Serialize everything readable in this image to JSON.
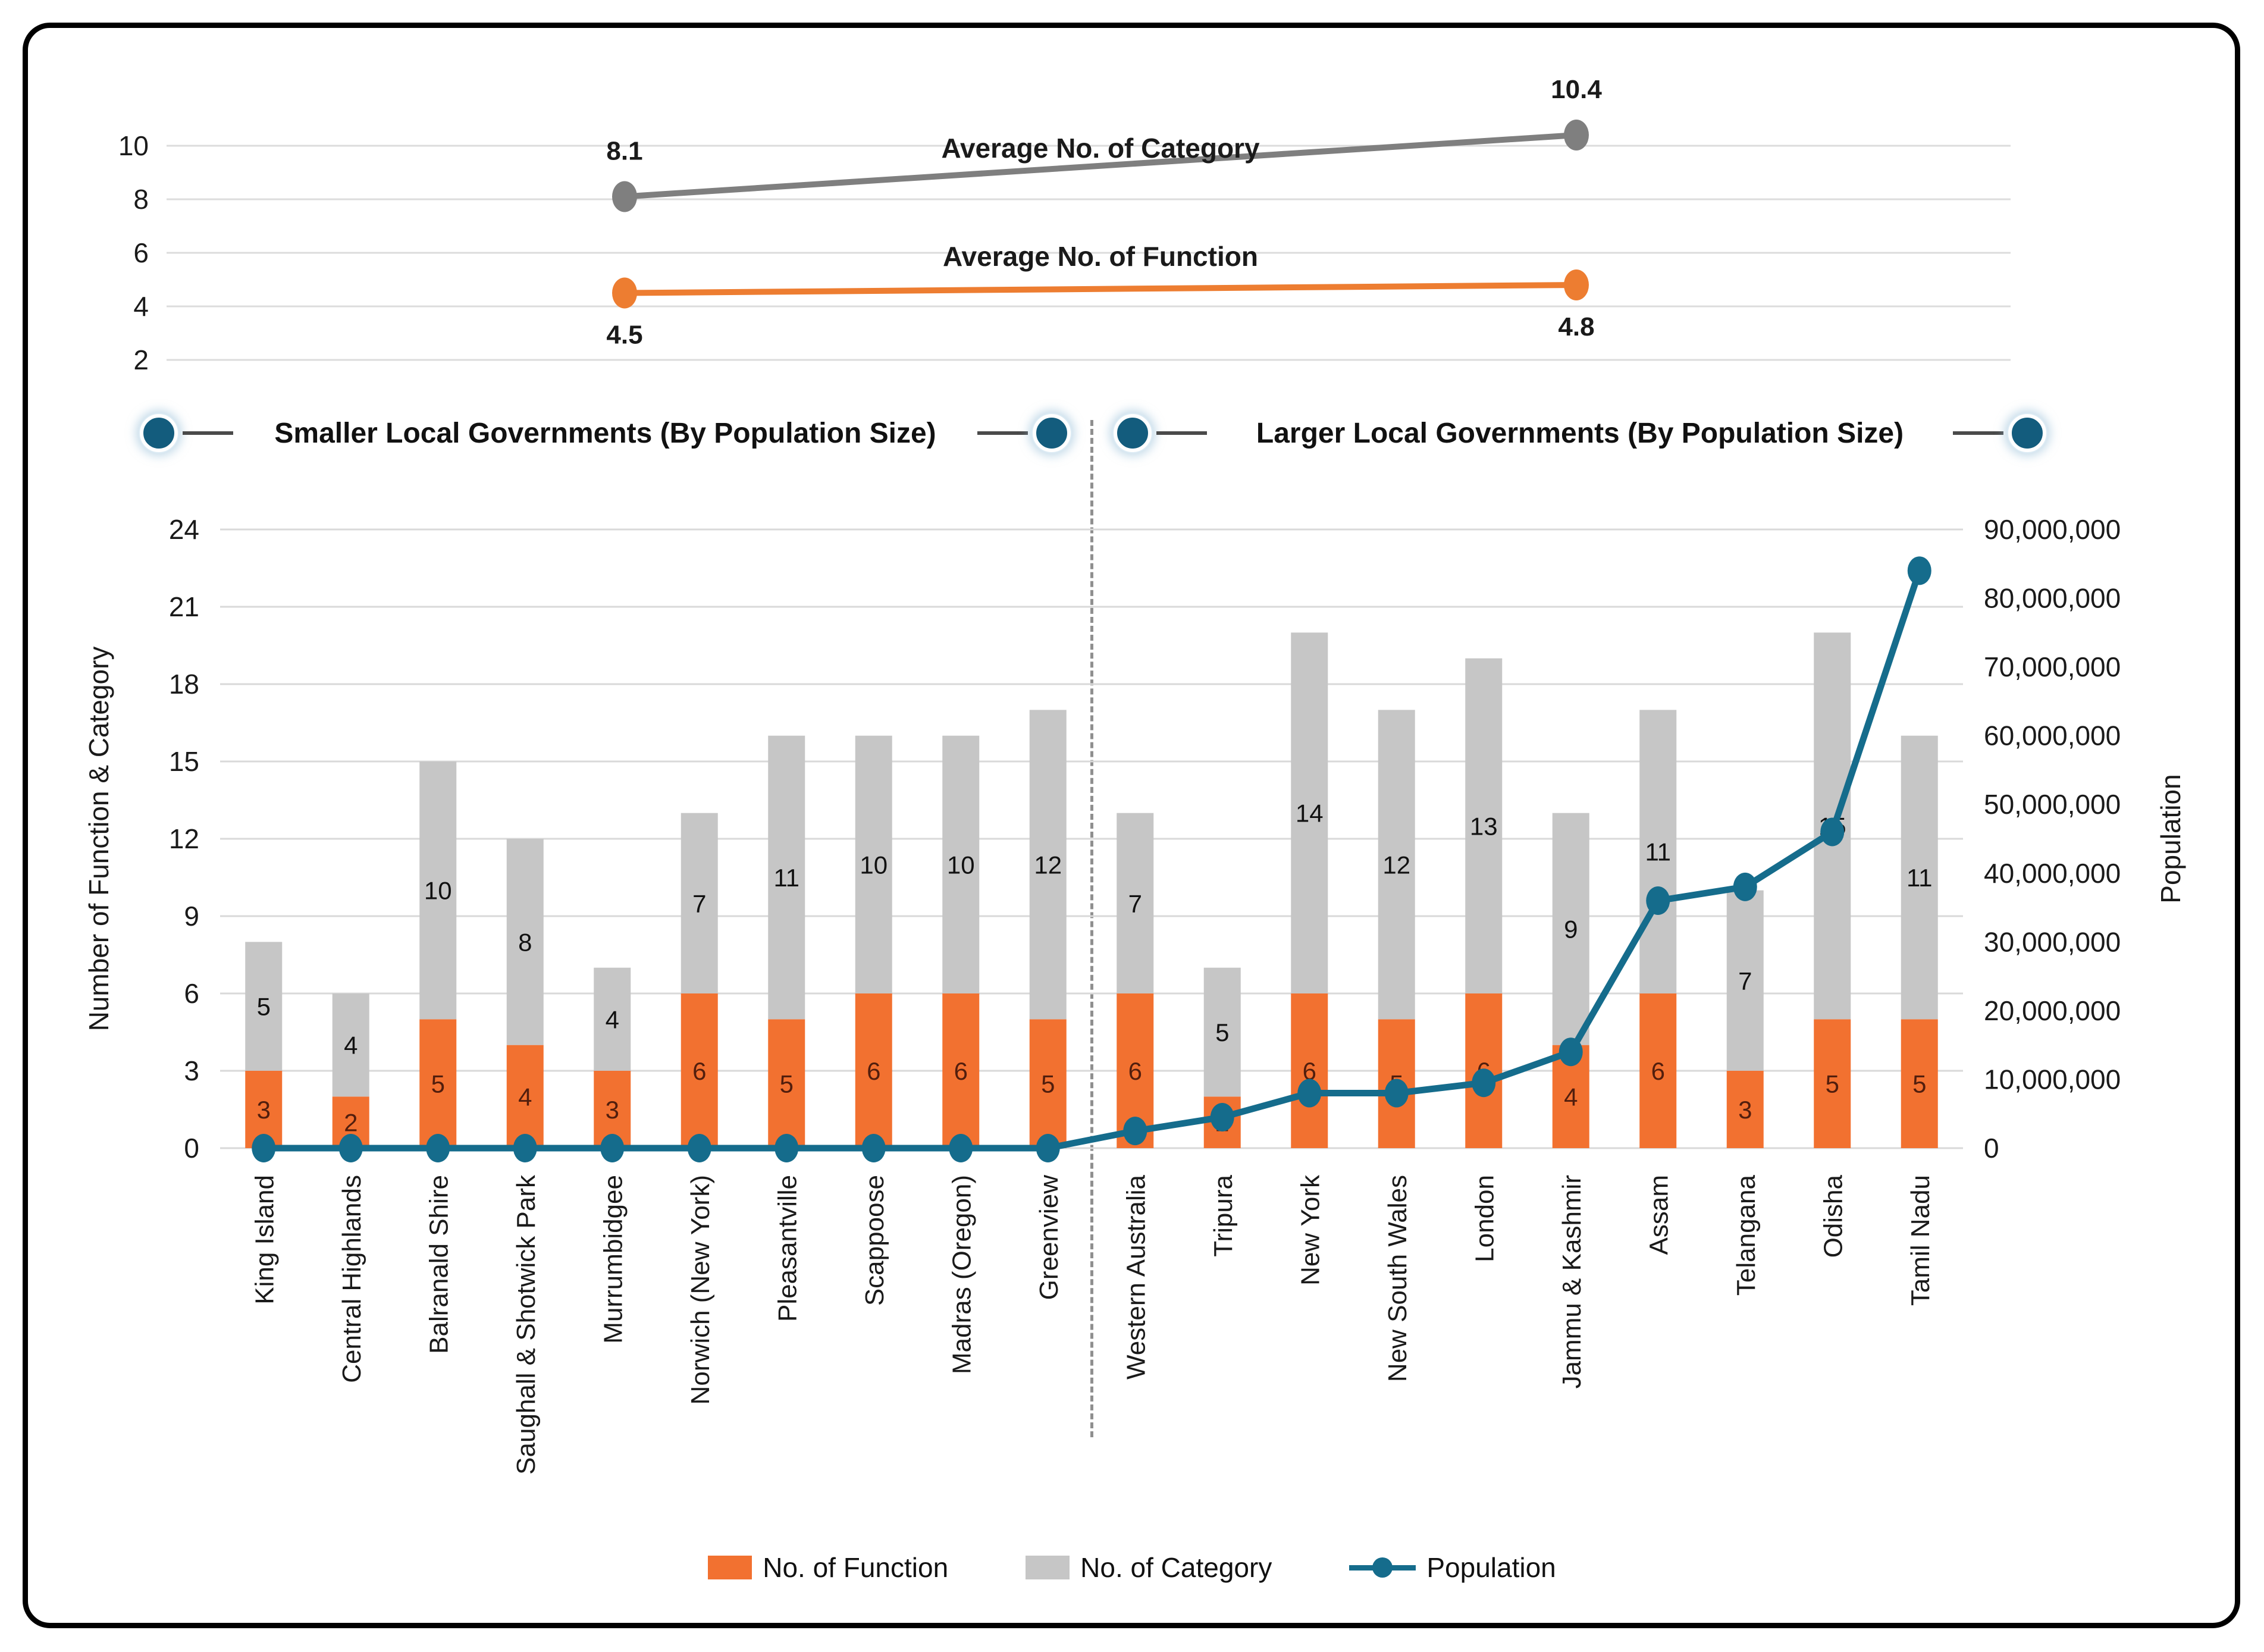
{
  "figure": {
    "section_headers": {
      "left": "Smaller Local Governments (By Population Size)",
      "right": "Larger Local Governments (By Population Size)"
    },
    "legend": [
      {
        "label": "No. of Function",
        "color": "#F27130",
        "marker": "square"
      },
      {
        "label": "No. of Category",
        "color": "#C6C6C6",
        "marker": "square"
      },
      {
        "label": "Population",
        "color": "#156C8C",
        "marker": "line-dot"
      }
    ]
  },
  "chart_data": [
    {
      "id": "averages_line_chart",
      "type": "line",
      "x": [
        "Smaller Local Governments group",
        "Larger Local Governments group"
      ],
      "series": [
        {
          "name": "Average No. of Category",
          "color": "#7F7F7F",
          "values": [
            8.1,
            10.4
          ]
        },
        {
          "name": "Average No. of Function",
          "color": "#ED7D31",
          "values": [
            4.5,
            4.8
          ]
        }
      ],
      "yticks": [
        2,
        4,
        6,
        8,
        10
      ],
      "ylim": [
        1.5,
        11.5
      ],
      "grid": true,
      "data_labels": true,
      "legend_position": "inline"
    },
    {
      "id": "functions_categories_population_chart",
      "type": "bar+line",
      "categories": [
        "King Island",
        "Central Highlands",
        "Balranald Shire",
        "Saughall & Shotwick Park",
        "Murrumbidgee",
        "Norwich (New York)",
        "Pleasantville",
        "Scappoose",
        "Madras (Oregon)",
        "Greenview",
        "Western Australia",
        "Tripura",
        "New York",
        "New South Wales",
        "London",
        "Jammu & Kashmir",
        "Assam",
        "Telangana",
        "Odisha",
        "Tamil Nadu"
      ],
      "group_split_after_index": 9,
      "series": [
        {
          "name": "No. of Function",
          "type": "stacked-bar",
          "axis": "left",
          "color": "#F27130",
          "values": [
            3,
            2,
            5,
            4,
            3,
            6,
            5,
            6,
            6,
            5,
            6,
            2,
            6,
            5,
            6,
            4,
            6,
            3,
            5,
            5
          ]
        },
        {
          "name": "No. of Category",
          "type": "stacked-bar",
          "axis": "left",
          "color": "#C6C6C6",
          "values": [
            5,
            4,
            10,
            8,
            4,
            7,
            11,
            10,
            10,
            12,
            7,
            5,
            14,
            12,
            13,
            9,
            11,
            7,
            15,
            11
          ]
        },
        {
          "name": "Population",
          "type": "line",
          "axis": "right",
          "color": "#156C8C",
          "values": [
            0,
            0,
            0,
            0,
            0,
            0,
            0,
            0,
            0,
            0,
            2500000,
            4500000,
            8000000,
            8000000,
            9500000,
            14000000,
            36000000,
            38000000,
            46000000,
            84000000
          ]
        }
      ],
      "ylabel_left": "Number of Function & Category",
      "ylabel_right": "Population",
      "yticks_left": [
        0,
        3,
        6,
        9,
        12,
        15,
        18,
        21,
        24
      ],
      "yticks_right": [
        0,
        10000000,
        20000000,
        30000000,
        40000000,
        50000000,
        60000000,
        70000000,
        80000000,
        90000000
      ],
      "ylim_left": [
        0,
        24
      ],
      "ylim_right": [
        0,
        90000000
      ],
      "grid": true,
      "data_labels": true,
      "legend_position": "bottom"
    }
  ]
}
